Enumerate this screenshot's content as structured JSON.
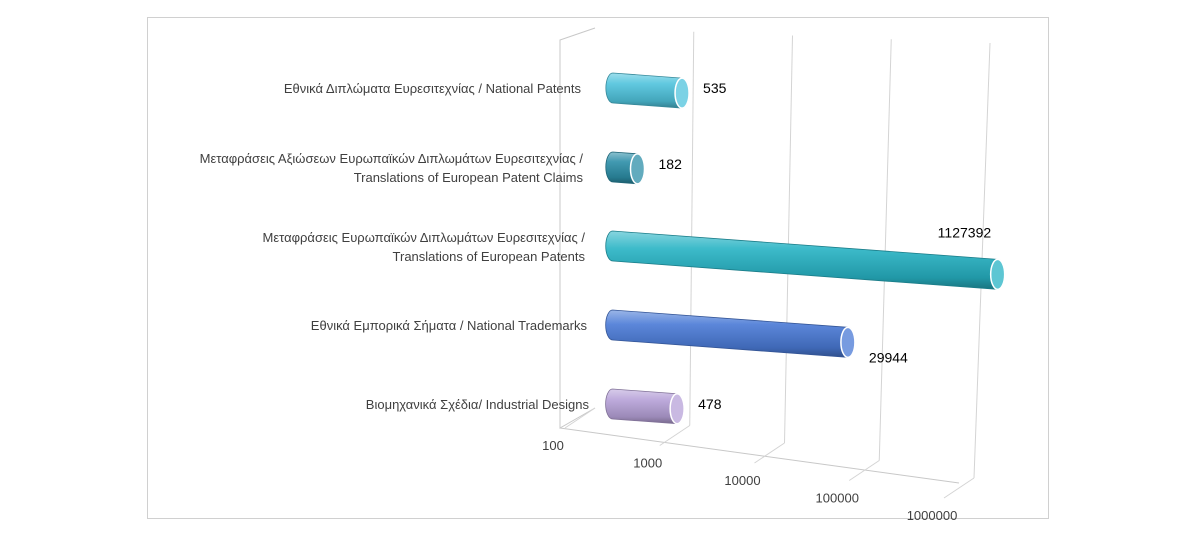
{
  "chart_data": {
    "type": "bar",
    "orientation": "horizontal",
    "style": "3d-cylinder",
    "scale": "log",
    "xlim": [
      100,
      1000000
    ],
    "title": "",
    "xlabel": "",
    "ylabel": "",
    "grid": true,
    "legend": "none",
    "ticks": [
      "100",
      "1000",
      "10000",
      "100000",
      "1000000"
    ],
    "tick_values": [
      100,
      1000,
      10000,
      100000,
      1000000
    ],
    "categories": [
      {
        "lines": [
          "Εθνικά Διπλώματα Ευρεσιτεχνίας / National Patents"
        ]
      },
      {
        "lines": [
          "Μεταφράσεις Αξιώσεων Ευρωπαϊκών Διπλωμάτων Ευρεσιτεχνίας /",
          "Translations of European Patent Claims"
        ]
      },
      {
        "lines": [
          "Μεταφράσεις Ευρωπαϊκών Διπλωμάτων Ευρεσιτεχνίας /",
          "Translations of European Patents"
        ]
      },
      {
        "lines": [
          "Εθνικά Εμπορικά Σήματα / National Trademarks"
        ]
      },
      {
        "lines": [
          "Βιομηχανικά Σχέδια/ Industrial Designs"
        ]
      }
    ],
    "values": [
      535,
      182,
      1127392,
      29944,
      478
    ],
    "value_labels": [
      "535",
      "182",
      "1127392",
      "29944",
      "478"
    ],
    "colors": [
      "#4fc3dc",
      "#2d8fa8",
      "#27b3c4",
      "#4a7ad6",
      "#b7a2d8"
    ]
  }
}
